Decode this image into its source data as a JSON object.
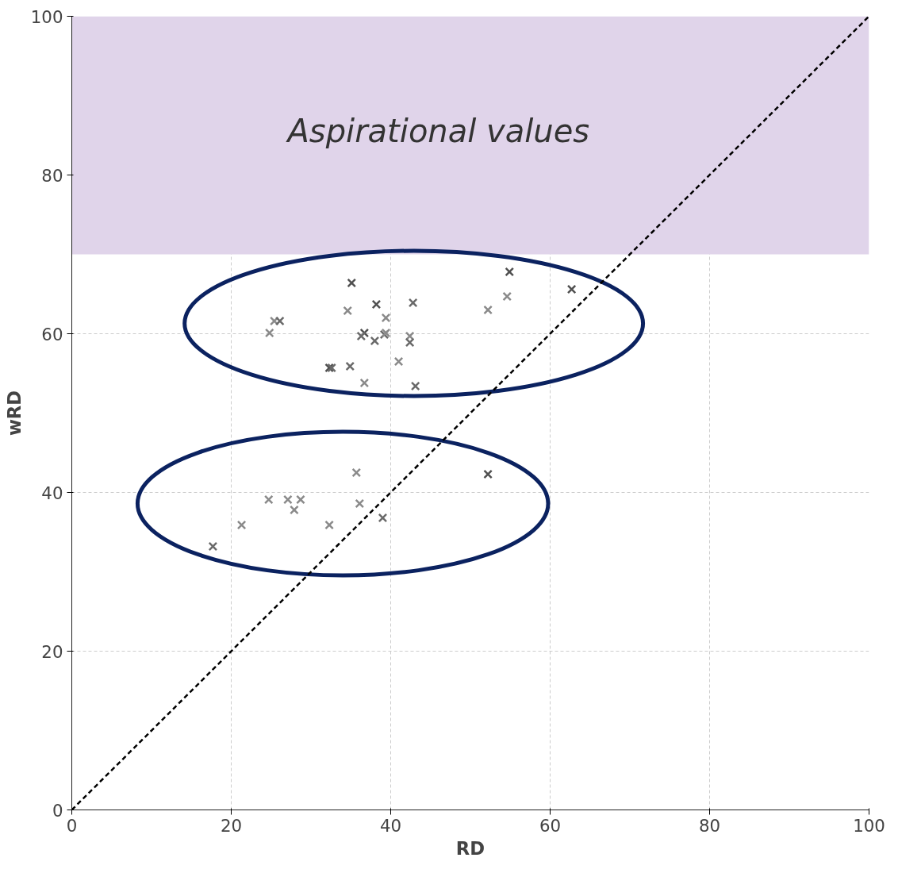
{
  "chart_data": {
    "type": "scatter",
    "xlabel": "RD",
    "ylabel": "wRD",
    "xlim": [
      0,
      100
    ],
    "ylim": [
      0,
      100
    ],
    "xticks": [
      0,
      20,
      40,
      60,
      80,
      100
    ],
    "yticks": [
      0,
      20,
      40,
      60,
      80,
      100
    ],
    "grid": true,
    "bands": [
      {
        "axis": "y",
        "from": 70,
        "to": 100,
        "label": "Aspirational values",
        "color": "#e0d4ea"
      }
    ],
    "series": [
      {
        "marker": "cross",
        "x": [
          35.1,
          54.9,
          62.7,
          38.2,
          42.8,
          34.6,
          52.2,
          54.6,
          25.4,
          26.1,
          24.8,
          39.4,
          36.7,
          36.3,
          39.2,
          39.4,
          38.0,
          42.4,
          42.4,
          41.0,
          32.3,
          32.6,
          34.9,
          36.7,
          43.1,
          17.7,
          21.3,
          24.7,
          27.1,
          28.7,
          27.9,
          32.3,
          35.7,
          36.1,
          39.0,
          52.2
        ],
        "values": [
          66.4,
          67.8,
          65.6,
          63.7,
          63.9,
          62.9,
          63.0,
          64.7,
          61.6,
          61.6,
          60.1,
          62.0,
          60.1,
          59.7,
          59.9,
          60.1,
          59.1,
          59.7,
          58.9,
          56.5,
          55.7,
          55.7,
          55.9,
          53.8,
          53.4,
          33.2,
          35.9,
          39.1,
          39.1,
          39.1,
          37.8,
          35.9,
          42.5,
          38.6,
          36.8,
          42.3
        ],
        "colors": [
          "#505050",
          "#505050",
          "#505050",
          "#505050",
          "#6a6a6a",
          "#8a8a8a",
          "#8a8a8a",
          "#8a8a8a",
          "#8a8a8a",
          "#6a6a6a",
          "#8a8a8a",
          "#8a8a8a",
          "#505050",
          "#6a6a6a",
          "#6a6a6a",
          "#8a8a8a",
          "#6a6a6a",
          "#8a8a8a",
          "#6a6a6a",
          "#8a8a8a",
          "#505050",
          "#6a6a6a",
          "#6a6a6a",
          "#8a8a8a",
          "#6a6a6a",
          "#6a6a6a",
          "#8a8a8a",
          "#8a8a8a",
          "#8a8a8a",
          "#8a8a8a",
          "#8a8a8a",
          "#8a8a8a",
          "#8a8a8a",
          "#8a8a8a",
          "#6a6a6a",
          "#505050"
        ]
      },
      {
        "type": "line",
        "x": [
          0,
          100
        ],
        "values": [
          0,
          100
        ],
        "color": "#000000",
        "line_style": "dashed",
        "marker": "none"
      }
    ]
  }
}
